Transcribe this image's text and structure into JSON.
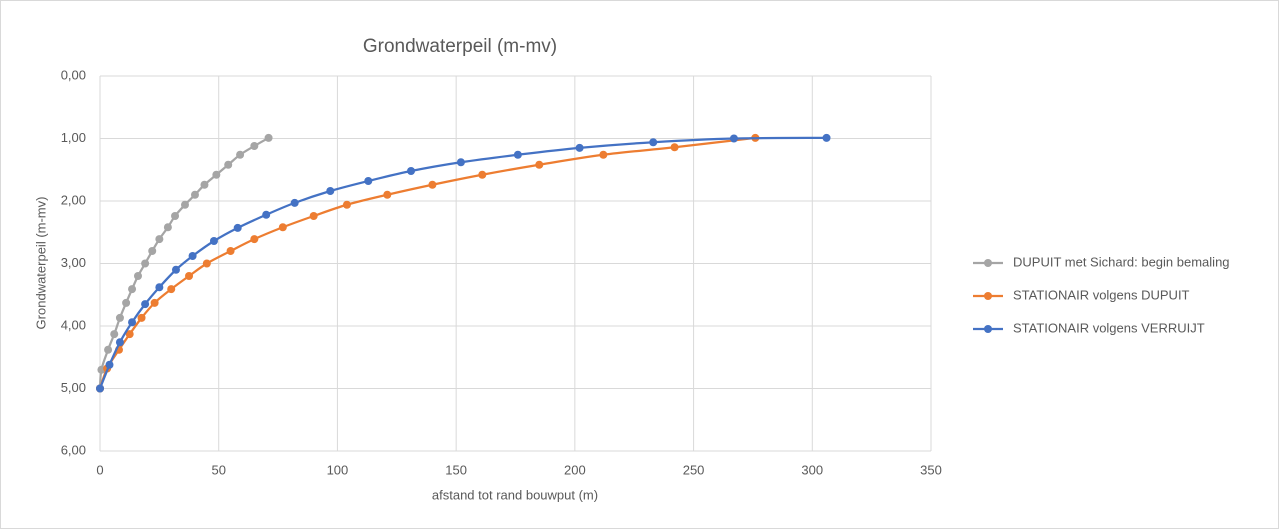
{
  "chart_data": {
    "type": "scatter",
    "title": "Grondwaterpeil (m-mv)",
    "xlabel": "afstand tot rand bouwput (m)",
    "ylabel": "Grondwaterpeil (m-mv)",
    "xlim": [
      0,
      350
    ],
    "xticks": [
      0,
      50,
      100,
      150,
      200,
      250,
      300,
      350
    ],
    "ylim": [
      0,
      6
    ],
    "yreverse": true,
    "yticks": [
      {
        "value": 0,
        "label": "0,00"
      },
      {
        "value": 1,
        "label": "1,00"
      },
      {
        "value": 2,
        "label": "2,00"
      },
      {
        "value": 3,
        "label": "3,00"
      },
      {
        "value": 4,
        "label": "4,00"
      },
      {
        "value": 5,
        "label": "5,00"
      },
      {
        "value": 6,
        "label": "6,00"
      }
    ],
    "grid": true,
    "legend": "right",
    "series": [
      {
        "name": "DUPUIT met Sichard: begin bemaling",
        "color": "#a5a5a5",
        "x": [
          0,
          0.6,
          3.4,
          6,
          8.4,
          11,
          13.5,
          16,
          19,
          22,
          25,
          28.6,
          31.6,
          35.8,
          40,
          44,
          49,
          54,
          59,
          65,
          71
        ],
        "values": [
          5.0,
          4.7,
          4.38,
          4.13,
          3.87,
          3.63,
          3.41,
          3.2,
          3.0,
          2.8,
          2.61,
          2.42,
          2.24,
          2.06,
          1.9,
          1.74,
          1.58,
          1.42,
          1.26,
          1.12,
          0.99
        ]
      },
      {
        "name": "STATIONAIR volgens DUPUIT",
        "color": "#ed7d31",
        "x": [
          0,
          3,
          8,
          12.5,
          17.5,
          23,
          30,
          37.5,
          45,
          55,
          65,
          77,
          90,
          104,
          121,
          140,
          161,
          185,
          212,
          242,
          276
        ],
        "values": [
          5.0,
          4.68,
          4.38,
          4.13,
          3.87,
          3.63,
          3.41,
          3.2,
          3.0,
          2.8,
          2.61,
          2.42,
          2.24,
          2.06,
          1.9,
          1.74,
          1.58,
          1.42,
          1.26,
          1.14,
          0.99
        ]
      },
      {
        "name": "STATIONAIR volgens VERRUIJT",
        "color": "#4472c4",
        "x": [
          0,
          4,
          8.4,
          13.5,
          19,
          25,
          32,
          39,
          48,
          58,
          70,
          82,
          97,
          113,
          131,
          152,
          176,
          202,
          233,
          267,
          306
        ],
        "values": [
          5.0,
          4.62,
          4.26,
          3.94,
          3.65,
          3.38,
          3.1,
          2.88,
          2.64,
          2.43,
          2.22,
          2.03,
          1.84,
          1.68,
          1.52,
          1.38,
          1.26,
          1.15,
          1.06,
          1.0,
          0.99
        ]
      }
    ]
  }
}
